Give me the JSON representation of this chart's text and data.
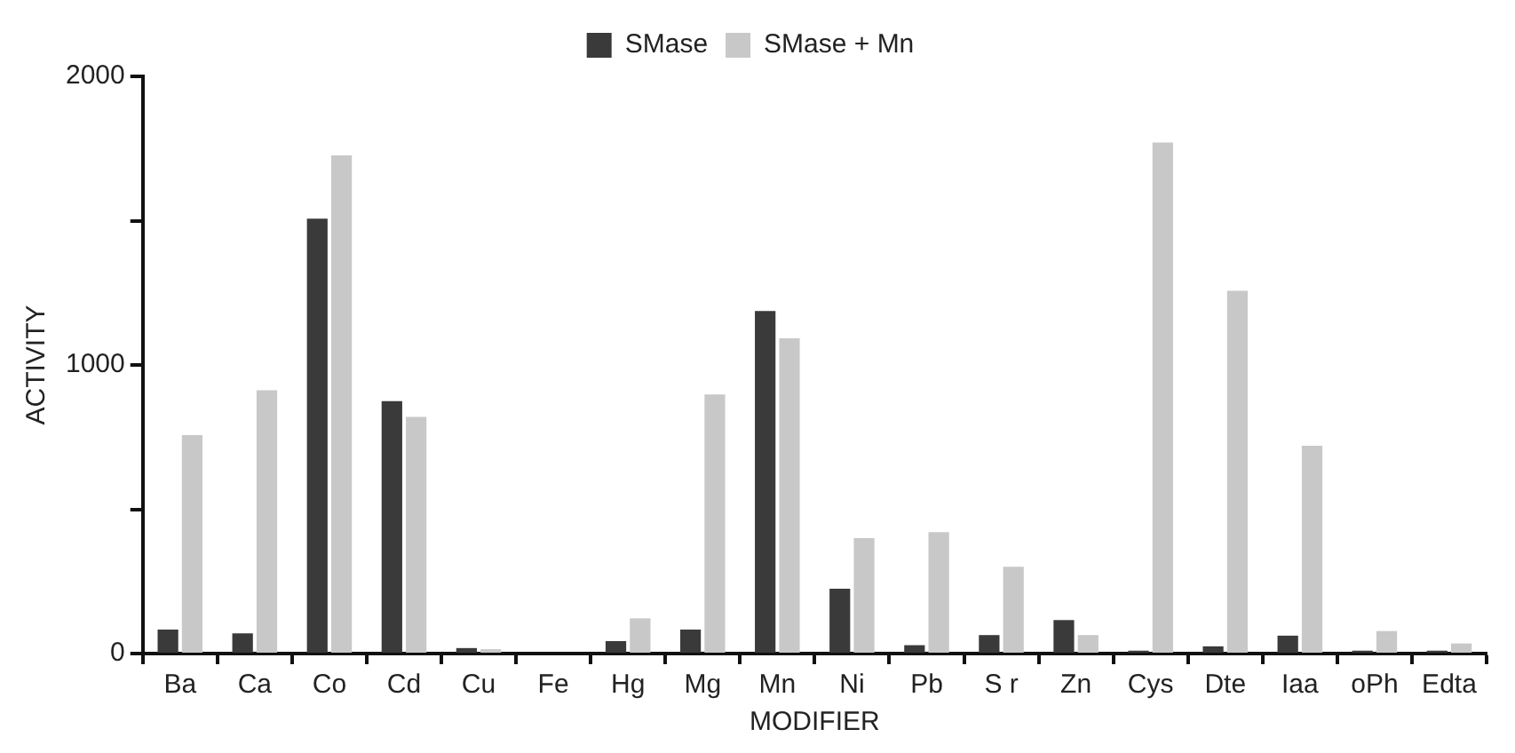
{
  "chart_data": {
    "type": "bar",
    "xlabel": "MODIFIER",
    "ylabel": "ACTIVITY",
    "categories": [
      "Ba",
      "Ca",
      "Co",
      "Cd",
      "Cu",
      "Fe",
      "Hg",
      "Mg",
      "Mn",
      "Ni",
      "Pb",
      "S r",
      "Zn",
      "Cys",
      "Dte",
      "Iaa",
      "oPh",
      "Edta"
    ],
    "series": [
      {
        "name": "SMase",
        "color": "#3a3a3a",
        "values": [
          83,
          70,
          1507,
          875,
          19,
          0,
          43,
          83,
          1187,
          225,
          29,
          64,
          116,
          10,
          25,
          62,
          10,
          10
        ]
      },
      {
        "name": "SMase + Mn",
        "color": "#c8c8c8",
        "values": [
          757,
          912,
          1726,
          820,
          15,
          0,
          122,
          898,
          1092,
          400,
          421,
          301,
          64,
          1771,
          1257,
          720,
          78,
          35
        ]
      }
    ],
    "ylim": [
      0,
      2000
    ],
    "yticks": [
      0,
      {
        "value": 500,
        "label": null
      },
      1000,
      {
        "value": 1500,
        "label": null
      },
      2000
    ],
    "grid": false,
    "legend": "top"
  }
}
